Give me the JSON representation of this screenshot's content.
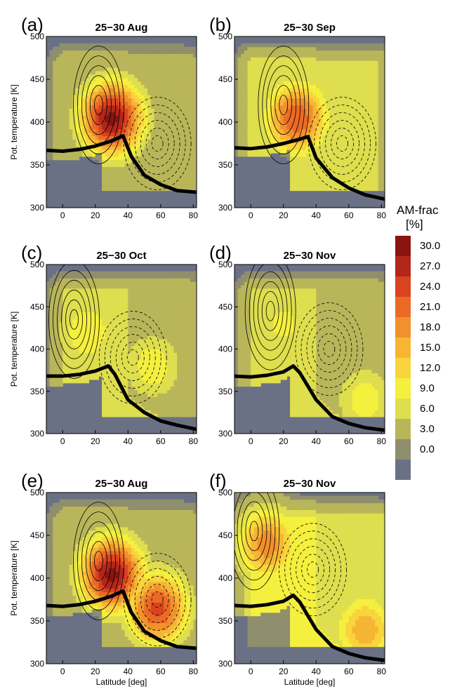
{
  "chart_data": [
    {
      "type": "heatmap",
      "panel": "(a)",
      "title": "25−30 Aug",
      "xlabel": "",
      "ylabel": "Pot. temperature [K]",
      "xlim": [
        -10,
        82
      ],
      "ylim": [
        300,
        500
      ],
      "xticks": [
        "0",
        "20",
        "40",
        "60",
        "80"
      ],
      "yticks": [
        "300",
        "350",
        "400",
        "450",
        "500"
      ],
      "tropopause": {
        "x": [
          -10,
          0,
          10,
          20,
          30,
          37,
          42,
          50,
          60,
          70,
          82
        ],
        "y": [
          367,
          366,
          368,
          372,
          378,
          384,
          360,
          338,
          327,
          320,
          318
        ]
      },
      "am_frac_maxima": [
        {
          "lat": 30,
          "theta": 405,
          "value": 31
        }
      ],
      "background_frac": 5
    },
    {
      "type": "heatmap",
      "panel": "(b)",
      "title": "25−30 Sep",
      "xlabel": "",
      "ylabel": "",
      "xlim": [
        -10,
        82
      ],
      "ylim": [
        300,
        500
      ],
      "xticks": [
        "0",
        "20",
        "40",
        "60",
        "80"
      ],
      "yticks": [
        "300",
        "350",
        "400",
        "450",
        "500"
      ],
      "tropopause": {
        "x": [
          -10,
          0,
          10,
          20,
          30,
          35,
          40,
          50,
          60,
          70,
          82
        ],
        "y": [
          370,
          369,
          371,
          375,
          380,
          383,
          358,
          335,
          323,
          315,
          310
        ]
      },
      "am_frac_maxima": [
        {
          "lat": 28,
          "theta": 405,
          "value": 24
        }
      ],
      "background_frac": 7
    },
    {
      "type": "heatmap",
      "panel": "(c)",
      "title": "25−30 Oct",
      "xlabel": "",
      "ylabel": "Pot. temperature [K]",
      "xlim": [
        -10,
        82
      ],
      "ylim": [
        300,
        500
      ],
      "xticks": [
        "0",
        "20",
        "40",
        "60",
        "80"
      ],
      "yticks": [
        "300",
        "350",
        "400",
        "450",
        "500"
      ],
      "tropopause": {
        "x": [
          -10,
          0,
          10,
          20,
          28,
          32,
          40,
          50,
          60,
          70,
          82
        ],
        "y": [
          368,
          368,
          370,
          374,
          380,
          370,
          340,
          325,
          315,
          310,
          305
        ]
      },
      "am_frac_maxima": [
        {
          "lat": 15,
          "theta": 420,
          "value": 12
        },
        {
          "lat": 55,
          "theta": 380,
          "value": 11
        }
      ],
      "background_frac": 6
    },
    {
      "type": "heatmap",
      "panel": "(d)",
      "title": "25−30 Nov",
      "xlabel": "",
      "ylabel": "",
      "xlim": [
        -10,
        82
      ],
      "ylim": [
        300,
        500
      ],
      "xticks": [
        "0",
        "20",
        "40",
        "60",
        "80"
      ],
      "yticks": [
        "300",
        "350",
        "400",
        "450",
        "500"
      ],
      "tropopause": {
        "x": [
          -10,
          0,
          10,
          20,
          26,
          30,
          40,
          50,
          60,
          70,
          82
        ],
        "y": [
          368,
          367,
          369,
          373,
          380,
          372,
          340,
          320,
          312,
          307,
          304
        ]
      },
      "am_frac_maxima": [
        {
          "lat": 20,
          "theta": 430,
          "value": 10
        },
        {
          "lat": 70,
          "theta": 340,
          "value": 11
        }
      ],
      "background_frac": 6
    },
    {
      "type": "heatmap",
      "panel": "(e)",
      "title": "25−30 Aug",
      "xlabel": "Latitude [deg]",
      "ylabel": "Pot. temperature [K]",
      "xlim": [
        -10,
        82
      ],
      "ylim": [
        300,
        500
      ],
      "xticks": [
        "0",
        "20",
        "40",
        "60",
        "80"
      ],
      "yticks": [
        "300",
        "350",
        "400",
        "450",
        "500"
      ],
      "tropopause": {
        "x": [
          -10,
          0,
          10,
          20,
          30,
          37,
          42,
          50,
          60,
          70,
          82
        ],
        "y": [
          368,
          367,
          369,
          373,
          379,
          385,
          360,
          338,
          327,
          320,
          318
        ]
      },
      "am_frac_maxima": [
        {
          "lat": 30,
          "theta": 405,
          "value": 31
        },
        {
          "lat": 58,
          "theta": 365,
          "value": 25
        }
      ],
      "background_frac": 5
    },
    {
      "type": "heatmap",
      "panel": "(f)",
      "title": "25−30 Nov",
      "xlabel": "Latitude [deg]",
      "ylabel": "",
      "xlim": [
        -10,
        82
      ],
      "ylim": [
        300,
        500
      ],
      "xticks": [
        "0",
        "20",
        "40",
        "60",
        "80"
      ],
      "yticks": [
        "300",
        "350",
        "400",
        "450",
        "500"
      ],
      "tropopause": {
        "x": [
          -10,
          0,
          10,
          20,
          26,
          30,
          40,
          50,
          60,
          70,
          82
        ],
        "y": [
          368,
          367,
          369,
          373,
          380,
          372,
          340,
          320,
          312,
          307,
          304
        ]
      },
      "am_frac_maxima": [
        {
          "lat": 10,
          "theta": 440,
          "value": 20
        },
        {
          "lat": 70,
          "theta": 340,
          "value": 17
        }
      ],
      "background_frac": 9
    }
  ],
  "colorbar": {
    "title": "AM-frac",
    "unit": "[%]",
    "labels": [
      "30.0",
      "27.0",
      "24.0",
      "21.0",
      "18.0",
      "15.0",
      "12.0",
      "9.0",
      "6.0",
      "3.0",
      "0.0"
    ],
    "levels": [
      0,
      3,
      6,
      9,
      12,
      15,
      18,
      21,
      24,
      27,
      30
    ],
    "colors": [
      "#6a7185",
      "#8f8f6e",
      "#b9b65a",
      "#dede4e",
      "#f5ef3e",
      "#f9d43c",
      "#f7b534",
      "#f2902c",
      "#eb6a25",
      "#d9431f",
      "#b3261b",
      "#8b1410"
    ]
  }
}
